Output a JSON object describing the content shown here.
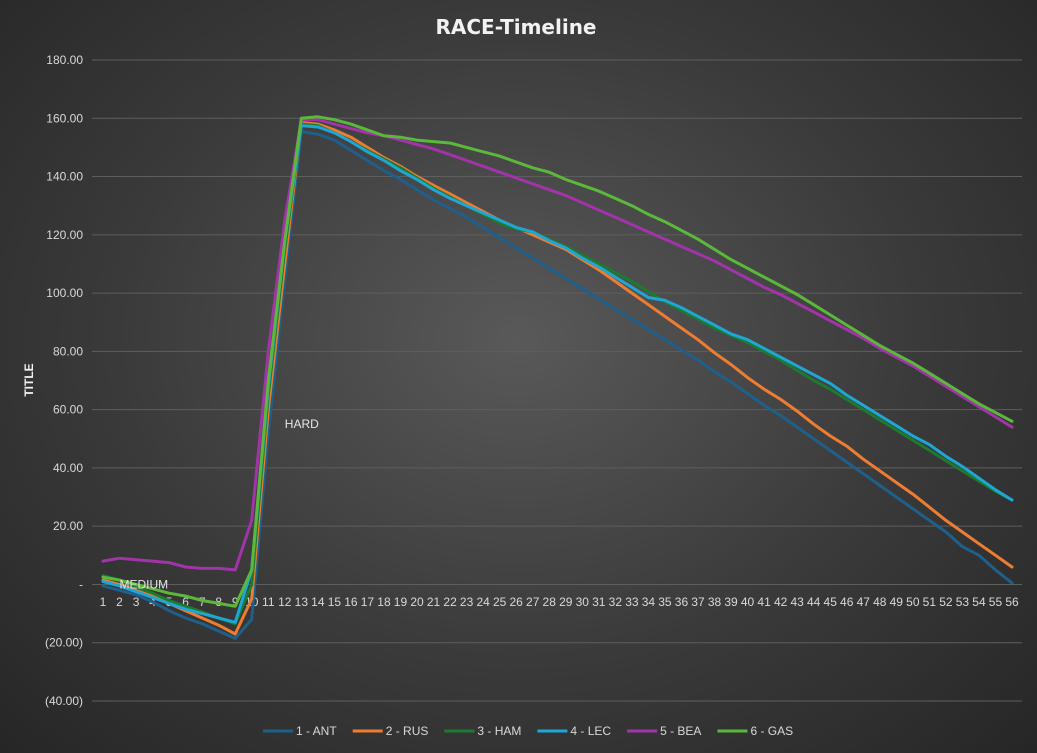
{
  "chart_data": {
    "type": "line",
    "title": "RACE-Timeline",
    "ylabel": "TITLE",
    "xlabel": "",
    "ylim": [
      -40,
      180
    ],
    "yticks": [
      -40,
      -20,
      0,
      20,
      40,
      60,
      80,
      100,
      120,
      140,
      160,
      180
    ],
    "ytick_labels": [
      "(40.00)",
      "(20.00)",
      "-",
      "20.00",
      "40.00",
      "60.00",
      "80.00",
      "100.00",
      "120.00",
      "140.00",
      "160.00",
      "180.00"
    ],
    "grid": true,
    "legend": "bottom",
    "x": [
      1,
      2,
      3,
      4,
      5,
      6,
      7,
      8,
      9,
      10,
      11,
      12,
      13,
      14,
      15,
      16,
      17,
      18,
      19,
      20,
      21,
      22,
      23,
      24,
      25,
      26,
      27,
      28,
      29,
      30,
      31,
      32,
      33,
      34,
      35,
      36,
      37,
      38,
      39,
      40,
      41,
      42,
      43,
      44,
      45,
      46,
      47,
      48,
      49,
      50,
      51,
      52,
      53,
      54,
      55,
      56
    ],
    "annotations": [
      {
        "text": "MEDIUM",
        "x": 2,
        "y": 0
      },
      {
        "text": "HARD",
        "x": 12,
        "y": 55
      }
    ],
    "series": [
      {
        "name": "1 - ANT",
        "color": "#1f5f8b",
        "values": [
          -0.5,
          -2,
          -3.5,
          -6,
          -9,
          -11.5,
          -13.5,
          -16,
          -18.5,
          -12,
          52,
          105,
          155.5,
          154.5,
          152.5,
          149,
          145.5,
          142,
          139,
          135.5,
          132,
          129,
          126,
          122.5,
          119,
          115.5,
          112,
          108.5,
          105,
          101.5,
          98,
          94.5,
          91,
          87.5,
          84,
          80.5,
          77,
          73,
          69.5,
          65.5,
          61.5,
          58,
          54,
          50,
          46,
          42,
          38,
          34,
          30,
          26,
          22,
          18,
          13,
          10,
          5,
          0.5
        ]
      },
      {
        "name": "2 - RUS",
        "color": "#ed7d31",
        "values": [
          1.5,
          0,
          -2,
          -4,
          -6.5,
          -9,
          -11.5,
          -14,
          -17,
          -5,
          60,
          110,
          158.5,
          158,
          156,
          153.5,
          150,
          146.5,
          143.5,
          140,
          137,
          134,
          131,
          128,
          125,
          122.5,
          120,
          117.5,
          115,
          111.5,
          108,
          104,
          100,
          96,
          92,
          88,
          84,
          79.5,
          75.5,
          71,
          67,
          63.5,
          59.5,
          55,
          51,
          47.5,
          43,
          39,
          35,
          31,
          26.5,
          22,
          18,
          14,
          10,
          6
        ]
      },
      {
        "name": "3 - HAM",
        "color": "#1e7a2e",
        "values": [
          3,
          1.5,
          -1,
          -3,
          -5.5,
          -7.5,
          -9.5,
          -11.5,
          -13.5,
          0,
          65,
          115,
          158,
          157.5,
          155,
          152,
          149,
          146,
          143,
          139.5,
          136,
          133,
          130,
          127,
          124,
          122,
          121,
          118.5,
          116,
          113,
          110,
          107,
          104,
          100.5,
          97,
          94,
          91,
          88,
          85.5,
          83,
          80,
          77,
          73.5,
          70,
          67,
          63.5,
          60,
          56.5,
          53,
          49.5,
          46,
          42.5,
          39,
          35.5,
          32,
          29
        ]
      },
      {
        "name": "4 - LEC",
        "color": "#1ea6d6",
        "values": [
          1,
          -0.5,
          -2.5,
          -4.5,
          -6.5,
          -8.5,
          -10,
          -11.5,
          -13,
          5,
          68,
          118,
          157.5,
          157,
          155,
          152,
          148.5,
          145.5,
          142,
          139,
          135.5,
          132.5,
          130,
          127.5,
          125,
          122.5,
          121,
          118,
          115.5,
          112,
          109,
          105.5,
          102,
          98.5,
          97.5,
          95,
          92,
          89,
          86,
          84,
          81,
          78,
          75,
          72,
          69,
          65,
          61.5,
          58,
          54.5,
          51,
          48,
          44,
          40.5,
          36.5,
          32.5,
          29
        ]
      },
      {
        "name": "5 - BEA",
        "color": "#a034a8",
        "values": [
          8,
          9,
          8.5,
          8,
          7.5,
          6,
          5.5,
          5.5,
          5,
          22,
          80,
          125,
          159.5,
          159.5,
          158,
          156.5,
          155,
          154,
          152.5,
          151,
          149.5,
          147.5,
          145.5,
          143.5,
          141.5,
          139.5,
          137.5,
          135.5,
          133.5,
          131,
          128.5,
          126,
          123.5,
          121,
          118.5,
          116,
          113.5,
          111,
          108,
          105,
          102,
          99.5,
          96.5,
          93.5,
          90.5,
          87.5,
          84.5,
          81,
          78,
          75,
          71.5,
          68,
          64.5,
          61,
          57.5,
          54
        ]
      },
      {
        "name": "6 - GAS",
        "color": "#5cb83a",
        "values": [
          2.5,
          1.5,
          0,
          -1.5,
          -3,
          -4,
          -5.5,
          -6.5,
          -7.5,
          5,
          70,
          118,
          160,
          160.5,
          159.5,
          158,
          156,
          154,
          153.5,
          152.5,
          152,
          151.5,
          150,
          148.5,
          147,
          145,
          143,
          141.5,
          139,
          137,
          135,
          132.5,
          130,
          127,
          124.5,
          121.5,
          118.5,
          115,
          111.5,
          108.5,
          105.5,
          102.5,
          99.5,
          96,
          92.5,
          89,
          85.5,
          82,
          79,
          76,
          72.5,
          69,
          65.5,
          62,
          59,
          56
        ]
      }
    ]
  }
}
